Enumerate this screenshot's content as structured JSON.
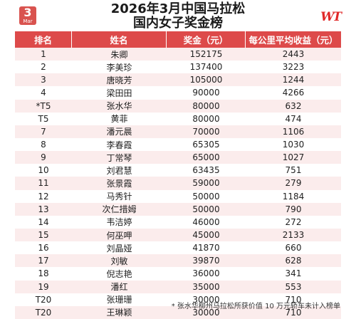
{
  "badge": {
    "number": "3",
    "month": "Mar"
  },
  "title": {
    "line1": "2026年3月中国马拉松",
    "line2": "国内女子奖金榜"
  },
  "brand": "WT",
  "columns": {
    "rank": "排名",
    "name": "姓名",
    "prize": "奖金（元）",
    "per_km": "每公里平均收益（元）"
  },
  "rows": [
    {
      "rank": "1",
      "name": "朱卿",
      "prize": "152175",
      "per_km": "2443"
    },
    {
      "rank": "2",
      "name": "李美珍",
      "prize": "137400",
      "per_km": "3223"
    },
    {
      "rank": "3",
      "name": "唐晓芳",
      "prize": "105000",
      "per_km": "1244"
    },
    {
      "rank": "4",
      "name": "梁田田",
      "prize": "90000",
      "per_km": "4266"
    },
    {
      "rank": "*T5",
      "name": "张水华",
      "prize": "80000",
      "per_km": "632"
    },
    {
      "rank": "T5",
      "name": "黄菲",
      "prize": "80000",
      "per_km": "474"
    },
    {
      "rank": "7",
      "name": "潘元晨",
      "prize": "70000",
      "per_km": "1106"
    },
    {
      "rank": "8",
      "name": "李春霞",
      "prize": "65305",
      "per_km": "1030"
    },
    {
      "rank": "9",
      "name": "丁常琴",
      "prize": "65000",
      "per_km": "1027"
    },
    {
      "rank": "10",
      "name": "刘君慧",
      "prize": "63435",
      "per_km": "751"
    },
    {
      "rank": "11",
      "name": "张景霞",
      "prize": "59000",
      "per_km": "279"
    },
    {
      "rank": "12",
      "name": "马秀针",
      "prize": "50000",
      "per_km": "1184"
    },
    {
      "rank": "13",
      "name": "次仁措姆",
      "prize": "50000",
      "per_km": "790"
    },
    {
      "rank": "14",
      "name": "韦洁婷",
      "prize": "46000",
      "per_km": "272"
    },
    {
      "rank": "15",
      "name": "何巫呷",
      "prize": "45000",
      "per_km": "2133"
    },
    {
      "rank": "16",
      "name": "刘晶娅",
      "prize": "41870",
      "per_km": "660"
    },
    {
      "rank": "17",
      "name": "刘敏",
      "prize": "39870",
      "per_km": "628"
    },
    {
      "rank": "18",
      "name": "倪志艳",
      "prize": "36000",
      "per_km": "341"
    },
    {
      "rank": "19",
      "name": "潘红",
      "prize": "35000",
      "per_km": "553"
    },
    {
      "rank": "T20",
      "name": "张珊珊",
      "prize": "30000",
      "per_km": "710"
    },
    {
      "rank": "T20",
      "name": "王琳颖",
      "prize": "30000",
      "per_km": "710"
    }
  ],
  "footnote": "* 张水华柳州马拉松所获价值 10 万元轿车未计入榜单",
  "colors": {
    "accent": "#dd4a4a",
    "stripe": "#fbecec",
    "brand": "#e02828"
  }
}
